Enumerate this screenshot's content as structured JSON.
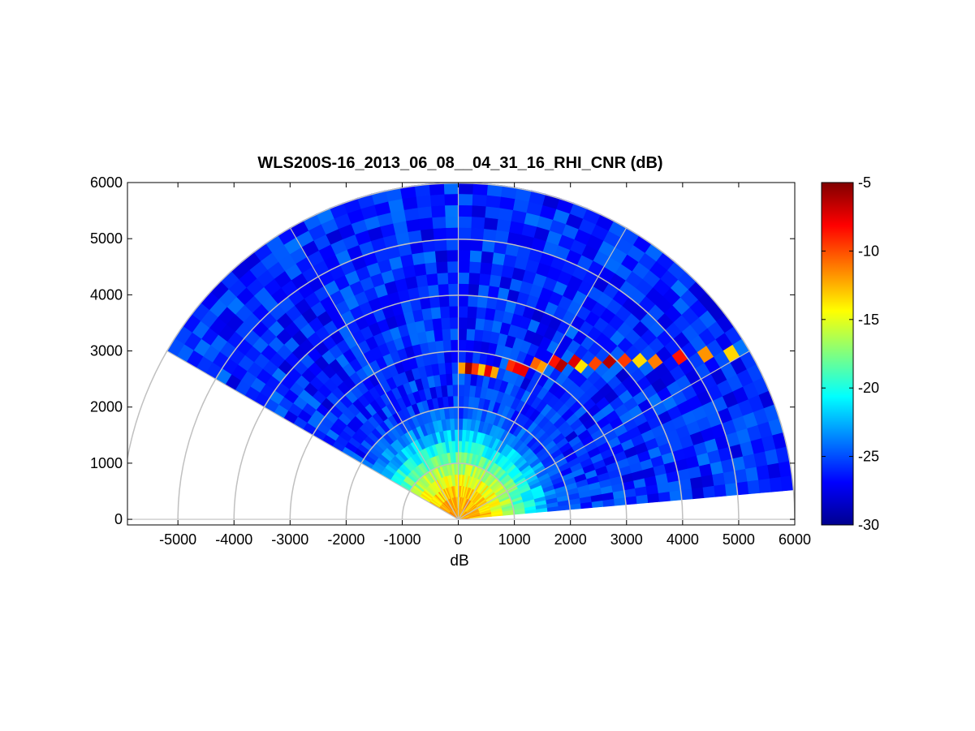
{
  "chart_data": {
    "type": "heatmap",
    "title": "WLS200S-16_2013_06_08__04_31_16_RHI_CNR (dB)",
    "xlabel": "dB",
    "ylabel": "",
    "xlim": [
      -5900,
      6000
    ],
    "ylim": [
      -100,
      6000
    ],
    "x_ticks": [
      -5000,
      -4000,
      -3000,
      -2000,
      -1000,
      0,
      1000,
      2000,
      3000,
      4000,
      5000,
      6000
    ],
    "y_ticks": [
      0,
      1000,
      2000,
      3000,
      4000,
      5000,
      6000
    ],
    "colorbar": {
      "min": -30,
      "max": -5,
      "ticks": [
        -5,
        -10,
        -15,
        -20,
        -25,
        -30
      ],
      "colormap": "jet"
    },
    "scan": {
      "max_range": 6000,
      "elevation_min_deg": 5,
      "elevation_max_deg": 150,
      "background_cnr": -26,
      "near_range_peak_cnr": -12,
      "layer_cnr": -5,
      "layer_height": 2650,
      "cloud_base_beam_deg": 150,
      "cloud_base_range": 2700
    },
    "grid": true,
    "polar_grid": {
      "rings": [
        1000,
        2000,
        3000,
        4000,
        5000,
        6000
      ],
      "spokes_deg": [
        0,
        30,
        60,
        90,
        120,
        150,
        180
      ]
    }
  }
}
